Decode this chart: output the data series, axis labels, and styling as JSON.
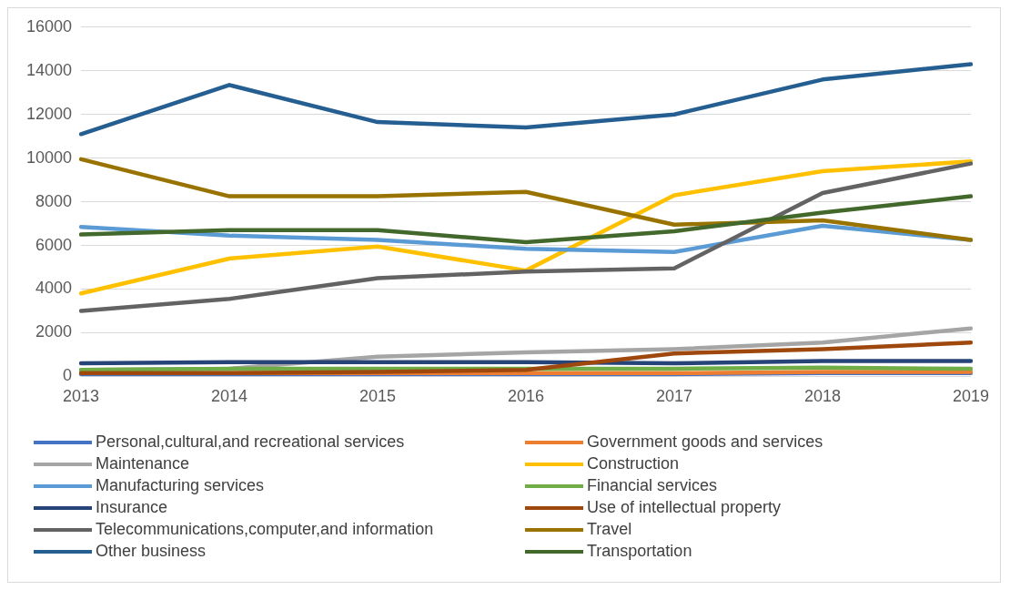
{
  "chart_data": {
    "type": "line",
    "categories": [
      "2013",
      "2014",
      "2015",
      "2016",
      "2017",
      "2018",
      "2019"
    ],
    "ylim": [
      0,
      16000
    ],
    "yticks": [
      0,
      2000,
      4000,
      6000,
      8000,
      10000,
      12000,
      14000,
      16000
    ],
    "grid": "y",
    "legend": "bottom",
    "marker": "none",
    "series": [
      {
        "name": "Personal,cultural,and recreational services",
        "color": "#4472c4",
        "values": [
          100,
          100,
          100,
          100,
          100,
          150,
          150
        ]
      },
      {
        "name": "Government goods and services",
        "color": "#ed7d31",
        "values": [
          150,
          150,
          150,
          150,
          150,
          200,
          200
        ]
      },
      {
        "name": "Maintenance",
        "color": "#a5a5a5",
        "values": [
          300,
          350,
          900,
          1100,
          1250,
          1550,
          2200
        ]
      },
      {
        "name": "Construction",
        "color": "#ffc000",
        "values": [
          3800,
          5400,
          5950,
          4850,
          8300,
          9400,
          9850
        ]
      },
      {
        "name": "Manufacturing services",
        "color": "#5b9bd5",
        "values": [
          6850,
          6450,
          6250,
          5850,
          5700,
          6900,
          6250
        ]
      },
      {
        "name": "Financial services",
        "color": "#70ad47",
        "values": [
          300,
          350,
          350,
          350,
          350,
          400,
          350
        ]
      },
      {
        "name": "Insurance",
        "color": "#264478",
        "values": [
          600,
          650,
          650,
          650,
          600,
          700,
          700
        ]
      },
      {
        "name": "Use of intellectual property",
        "color": "#9e480e",
        "values": [
          150,
          150,
          200,
          300,
          1050,
          1250,
          1550
        ]
      },
      {
        "name": "Telecommunications,computer,and information",
        "color": "#636363",
        "values": [
          3000,
          3550,
          4500,
          4800,
          4950,
          8400,
          9750
        ]
      },
      {
        "name": "Travel",
        "color": "#997300",
        "values": [
          9950,
          8250,
          8250,
          8450,
          6950,
          7150,
          6250
        ]
      },
      {
        "name": "Other business",
        "color": "#255e91",
        "values": [
          11100,
          13350,
          11650,
          11400,
          12000,
          13600,
          14300
        ]
      },
      {
        "name": "Transportation",
        "color": "#43682b",
        "values": [
          6500,
          6700,
          6700,
          6150,
          6650,
          7500,
          8250
        ]
      }
    ]
  }
}
